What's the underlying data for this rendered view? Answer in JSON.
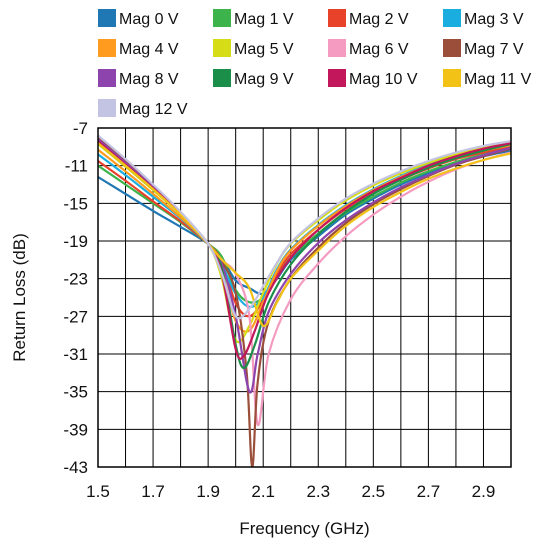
{
  "chart_data": {
    "type": "line",
    "xlabel": "Frequency (GHz)",
    "ylabel": "Return Loss (dB)",
    "xlim": [
      1.5,
      3.0
    ],
    "ylim": [
      -43,
      -7
    ],
    "x_ticks": [
      "1.5",
      "1.7",
      "1.9",
      "2.1",
      "2.3",
      "2.5",
      "2.7",
      "2.9"
    ],
    "y_ticks": [
      "-7",
      "-11",
      "-15",
      "-19",
      "-23",
      "-27",
      "-31",
      "-35",
      "-39",
      "-43"
    ],
    "grid": true,
    "legend_position": "top",
    "series": [
      {
        "name": "Mag 0 V",
        "color": "#1f77b4",
        "points": [
          [
            1.5,
            -12.2
          ],
          [
            1.6,
            -14.0
          ],
          [
            1.7,
            -15.8
          ],
          [
            1.8,
            -17.5
          ],
          [
            1.9,
            -19.3
          ],
          [
            1.95,
            -20.8
          ],
          [
            2.0,
            -23.2
          ],
          [
            2.05,
            -24.0
          ],
          [
            2.1,
            -24.6
          ],
          [
            2.15,
            -23.0
          ],
          [
            2.2,
            -21.0
          ],
          [
            2.3,
            -18.5
          ],
          [
            2.4,
            -16.2
          ],
          [
            2.5,
            -14.5
          ],
          [
            2.6,
            -13.0
          ],
          [
            2.7,
            -11.8
          ],
          [
            2.8,
            -10.8
          ],
          [
            2.9,
            -10.0
          ],
          [
            3.0,
            -9.4
          ]
        ]
      },
      {
        "name": "Mag 1 V",
        "color": "#3cb44b",
        "points": [
          [
            1.5,
            -11.0
          ],
          [
            1.6,
            -13.0
          ],
          [
            1.7,
            -15.0
          ],
          [
            1.8,
            -17.0
          ],
          [
            1.9,
            -19.3
          ],
          [
            1.95,
            -20.7
          ],
          [
            2.0,
            -24.2
          ],
          [
            2.05,
            -25.5
          ],
          [
            2.1,
            -25.0
          ],
          [
            2.15,
            -22.8
          ],
          [
            2.2,
            -20.8
          ],
          [
            2.3,
            -18.2
          ],
          [
            2.4,
            -16.0
          ],
          [
            2.5,
            -14.3
          ],
          [
            2.6,
            -12.8
          ],
          [
            2.7,
            -11.6
          ],
          [
            2.8,
            -10.6
          ],
          [
            2.9,
            -9.8
          ],
          [
            3.0,
            -9.2
          ]
        ]
      },
      {
        "name": "Mag 2 V",
        "color": "#e8432a",
        "points": [
          [
            1.5,
            -10.5
          ],
          [
            1.6,
            -12.6
          ],
          [
            1.7,
            -14.8
          ],
          [
            1.8,
            -16.9
          ],
          [
            1.9,
            -19.3
          ],
          [
            1.95,
            -21.2
          ],
          [
            2.0,
            -25.6
          ],
          [
            2.05,
            -27.0
          ],
          [
            2.1,
            -25.3
          ],
          [
            2.15,
            -22.5
          ],
          [
            2.2,
            -20.4
          ],
          [
            2.3,
            -17.8
          ],
          [
            2.4,
            -15.6
          ],
          [
            2.5,
            -13.9
          ],
          [
            2.6,
            -12.5
          ],
          [
            2.7,
            -11.3
          ],
          [
            2.8,
            -10.3
          ],
          [
            2.9,
            -9.6
          ],
          [
            3.0,
            -9.0
          ]
        ]
      },
      {
        "name": "Mag 3 V",
        "color": "#1aaee0",
        "points": [
          [
            1.5,
            -9.8
          ],
          [
            1.6,
            -12.0
          ],
          [
            1.7,
            -14.3
          ],
          [
            1.8,
            -16.6
          ],
          [
            1.9,
            -19.3
          ],
          [
            1.95,
            -21.5
          ],
          [
            2.0,
            -24.6
          ],
          [
            2.05,
            -26.0
          ],
          [
            2.1,
            -25.0
          ],
          [
            2.15,
            -22.0
          ],
          [
            2.2,
            -19.9
          ],
          [
            2.3,
            -17.3
          ],
          [
            2.4,
            -15.2
          ],
          [
            2.5,
            -13.5
          ],
          [
            2.6,
            -12.1
          ],
          [
            2.7,
            -10.9
          ],
          [
            2.8,
            -10.0
          ],
          [
            2.9,
            -9.3
          ],
          [
            3.0,
            -8.8
          ]
        ]
      },
      {
        "name": "Mag 4 V",
        "color": "#ff9b1f",
        "points": [
          [
            1.5,
            -9.3
          ],
          [
            1.6,
            -11.6
          ],
          [
            1.7,
            -14.0
          ],
          [
            1.8,
            -16.5
          ],
          [
            1.9,
            -19.3
          ],
          [
            1.95,
            -22.2
          ],
          [
            2.0,
            -27.5
          ],
          [
            2.05,
            -28.5
          ],
          [
            2.1,
            -25.5
          ],
          [
            2.15,
            -22.2
          ],
          [
            2.2,
            -20.0
          ],
          [
            2.3,
            -17.4
          ],
          [
            2.4,
            -15.3
          ],
          [
            2.5,
            -13.6
          ],
          [
            2.6,
            -12.2
          ],
          [
            2.7,
            -11.0
          ],
          [
            2.8,
            -10.1
          ],
          [
            2.9,
            -9.4
          ],
          [
            3.0,
            -8.8
          ]
        ]
      },
      {
        "name": "Mag 5 V",
        "color": "#d6dc16",
        "points": [
          [
            1.5,
            -8.7
          ],
          [
            1.6,
            -11.1
          ],
          [
            1.7,
            -13.6
          ],
          [
            1.8,
            -16.2
          ],
          [
            1.9,
            -19.3
          ],
          [
            1.95,
            -23.0
          ],
          [
            2.0,
            -29.5
          ],
          [
            2.05,
            -28.0
          ],
          [
            2.1,
            -24.5
          ],
          [
            2.15,
            -21.4
          ],
          [
            2.2,
            -19.3
          ],
          [
            2.3,
            -16.8
          ],
          [
            2.4,
            -14.7
          ],
          [
            2.5,
            -13.1
          ],
          [
            2.6,
            -11.8
          ],
          [
            2.7,
            -10.7
          ],
          [
            2.8,
            -9.8
          ],
          [
            2.9,
            -9.1
          ],
          [
            3.0,
            -8.6
          ]
        ]
      },
      {
        "name": "Mag 6 V",
        "color": "#f59ac0",
        "points": [
          [
            1.5,
            -8.2
          ],
          [
            1.6,
            -10.7
          ],
          [
            1.7,
            -13.3
          ],
          [
            1.8,
            -16.0
          ],
          [
            1.9,
            -19.3
          ],
          [
            1.95,
            -21.0
          ],
          [
            2.0,
            -22.5
          ],
          [
            2.05,
            -27.0
          ],
          [
            2.08,
            -38.5
          ],
          [
            2.12,
            -31.0
          ],
          [
            2.2,
            -25.2
          ],
          [
            2.3,
            -21.4
          ],
          [
            2.4,
            -18.5
          ],
          [
            2.5,
            -16.2
          ],
          [
            2.6,
            -14.3
          ],
          [
            2.7,
            -12.7
          ],
          [
            2.8,
            -11.4
          ],
          [
            2.9,
            -10.4
          ],
          [
            3.0,
            -9.6
          ]
        ]
      },
      {
        "name": "Mag 7 V",
        "color": "#9b4f3b",
        "points": [
          [
            1.5,
            -8.0
          ],
          [
            1.6,
            -10.5
          ],
          [
            1.7,
            -13.2
          ],
          [
            1.8,
            -16.0
          ],
          [
            1.9,
            -19.3
          ],
          [
            1.95,
            -21.2
          ],
          [
            2.0,
            -24.5
          ],
          [
            2.04,
            -33.0
          ],
          [
            2.06,
            -43.0
          ],
          [
            2.08,
            -34.0
          ],
          [
            2.12,
            -27.5
          ],
          [
            2.2,
            -23.0
          ],
          [
            2.3,
            -19.7
          ],
          [
            2.4,
            -17.1
          ],
          [
            2.5,
            -15.1
          ],
          [
            2.6,
            -13.5
          ],
          [
            2.7,
            -12.1
          ],
          [
            2.8,
            -10.9
          ],
          [
            2.9,
            -10.0
          ],
          [
            3.0,
            -9.2
          ]
        ]
      },
      {
        "name": "Mag 8 V",
        "color": "#8e44ad",
        "points": [
          [
            1.5,
            -8.2
          ],
          [
            1.6,
            -10.7
          ],
          [
            1.7,
            -13.3
          ],
          [
            1.8,
            -16.0
          ],
          [
            1.9,
            -19.3
          ],
          [
            1.95,
            -21.5
          ],
          [
            2.0,
            -27.0
          ],
          [
            2.05,
            -35.0
          ],
          [
            2.08,
            -31.0
          ],
          [
            2.12,
            -26.5
          ],
          [
            2.2,
            -22.5
          ],
          [
            2.3,
            -19.2
          ],
          [
            2.4,
            -16.8
          ],
          [
            2.5,
            -14.9
          ],
          [
            2.6,
            -13.3
          ],
          [
            2.7,
            -12.0
          ],
          [
            2.8,
            -10.8
          ],
          [
            2.9,
            -9.9
          ],
          [
            3.0,
            -9.1
          ]
        ]
      },
      {
        "name": "Mag 9 V",
        "color": "#1b8e4a",
        "points": [
          [
            1.5,
            -8.6
          ],
          [
            1.6,
            -11.0
          ],
          [
            1.7,
            -13.5
          ],
          [
            1.8,
            -16.2
          ],
          [
            1.9,
            -19.3
          ],
          [
            1.95,
            -22.0
          ],
          [
            2.0,
            -30.0
          ],
          [
            2.03,
            -32.5
          ],
          [
            2.07,
            -30.0
          ],
          [
            2.12,
            -25.5
          ],
          [
            2.2,
            -21.5
          ],
          [
            2.3,
            -18.3
          ],
          [
            2.4,
            -15.9
          ],
          [
            2.5,
            -14.0
          ],
          [
            2.6,
            -12.5
          ],
          [
            2.7,
            -11.2
          ],
          [
            2.8,
            -10.2
          ],
          [
            2.9,
            -9.4
          ],
          [
            3.0,
            -8.7
          ]
        ]
      },
      {
        "name": "Mag 10 V",
        "color": "#c2185b",
        "points": [
          [
            1.5,
            -8.4
          ],
          [
            1.6,
            -10.9
          ],
          [
            1.7,
            -13.4
          ],
          [
            1.8,
            -16.1
          ],
          [
            1.9,
            -19.3
          ],
          [
            1.95,
            -22.5
          ],
          [
            2.0,
            -30.5
          ],
          [
            2.03,
            -31.2
          ],
          [
            2.07,
            -28.5
          ],
          [
            2.12,
            -24.5
          ],
          [
            2.2,
            -20.8
          ],
          [
            2.3,
            -17.8
          ],
          [
            2.4,
            -15.5
          ],
          [
            2.5,
            -13.7
          ],
          [
            2.6,
            -12.3
          ],
          [
            2.7,
            -11.0
          ],
          [
            2.8,
            -10.0
          ],
          [
            2.9,
            -9.2
          ],
          [
            3.0,
            -8.6
          ]
        ]
      },
      {
        "name": "Mag 11 V",
        "color": "#f2c316",
        "points": [
          [
            1.5,
            -8.6
          ],
          [
            1.6,
            -11.0
          ],
          [
            1.7,
            -13.5
          ],
          [
            1.8,
            -16.2
          ],
          [
            1.9,
            -19.3
          ],
          [
            1.95,
            -21.0
          ],
          [
            2.0,
            -22.4
          ],
          [
            2.05,
            -24.0
          ],
          [
            2.1,
            -28.0
          ],
          [
            2.15,
            -25.5
          ],
          [
            2.2,
            -23.0
          ],
          [
            2.3,
            -20.0
          ],
          [
            2.4,
            -17.4
          ],
          [
            2.5,
            -15.4
          ],
          [
            2.6,
            -13.8
          ],
          [
            2.7,
            -12.4
          ],
          [
            2.8,
            -11.3
          ],
          [
            2.9,
            -10.4
          ],
          [
            3.0,
            -9.7
          ]
        ]
      },
      {
        "name": "Mag 12 V",
        "color": "#c3c3e3",
        "points": [
          [
            1.5,
            -7.8
          ],
          [
            1.6,
            -10.3
          ],
          [
            1.7,
            -13.0
          ],
          [
            1.8,
            -15.9
          ],
          [
            1.9,
            -19.3
          ],
          [
            1.95,
            -22.5
          ],
          [
            2.0,
            -27.0
          ],
          [
            2.05,
            -26.2
          ],
          [
            2.1,
            -23.8
          ],
          [
            2.15,
            -21.3
          ],
          [
            2.2,
            -19.2
          ],
          [
            2.3,
            -16.6
          ],
          [
            2.4,
            -14.5
          ],
          [
            2.5,
            -12.9
          ],
          [
            2.6,
            -11.6
          ],
          [
            2.7,
            -10.5
          ],
          [
            2.8,
            -9.6
          ],
          [
            2.9,
            -8.9
          ],
          [
            3.0,
            -8.4
          ]
        ]
      }
    ]
  }
}
